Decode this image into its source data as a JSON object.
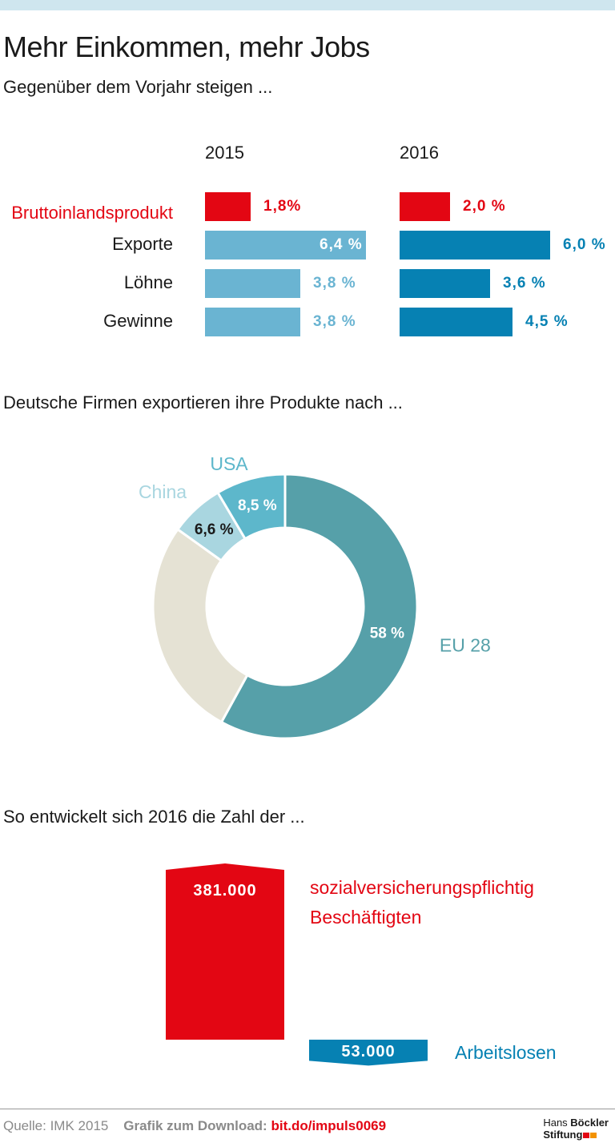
{
  "title": "Mehr Einkommen, mehr Jobs",
  "subtitle": "Gegenüber dem Vorjahr steigen ...",
  "section2_heading": "Deutsche Firmen exportieren ihre Produkte nach ...",
  "section3_heading": "So entwickelt sich 2016 die Zahl der ...",
  "colors": {
    "red": "#e30613",
    "light_blue": "#6ab4d2",
    "dark_blue": "#0681b3",
    "teal": "#56a0a9",
    "beige": "#e5e2d4",
    "light_teal": "#a9d6e0",
    "mid_teal": "#5db7cb"
  },
  "chart_data": [
    {
      "type": "bar",
      "title": "Gegenüber dem Vorjahr steigen ...",
      "categories": [
        "Bruttoinlandsprodukt",
        "Exporte",
        "Löhne",
        "Gewinne"
      ],
      "series": [
        {
          "name": "2015",
          "values": [
            1.8,
            6.4,
            3.8,
            3.8
          ],
          "labels": [
            "1,8%",
            "6,4 %",
            "3,8 %",
            "3,8 %"
          ]
        },
        {
          "name": "2016",
          "values": [
            2.0,
            6.0,
            3.6,
            4.5
          ],
          "labels": [
            "2,0 %",
            "6,0 %",
            "3,6 %",
            "4,5 %"
          ]
        }
      ],
      "xlabel": "",
      "ylabel": ""
    },
    {
      "type": "pie",
      "title": "Deutsche Firmen exportieren ihre Produkte nach ...",
      "categories": [
        "EU 28",
        "",
        "China",
        "USA"
      ],
      "values": [
        58,
        26.9,
        6.6,
        8.5
      ],
      "labels": [
        "58 %",
        "",
        "6,6 %",
        "8,5 %"
      ]
    },
    {
      "type": "bar",
      "title": "So entwickelt sich 2016 die Zahl der ...",
      "categories": [
        "sozialversicherungspflichtig Beschäftigten",
        "Arbeitslosen"
      ],
      "values": [
        381000,
        -53000
      ],
      "labels": [
        "381.000",
        "53.000"
      ],
      "category_lines": [
        [
          "sozialversicherungspflichtig",
          "Beschäftigten"
        ],
        [
          "Arbeitslosen"
        ]
      ]
    }
  ],
  "footer": {
    "source": "Quelle:  IMK 2015",
    "download_label": "Grafik zum Download:",
    "download_link": "bit.do/impuls0069"
  },
  "logo": {
    "line1_light": "Hans ",
    "line1_bold": "Böckler",
    "line2": "Stiftung"
  }
}
